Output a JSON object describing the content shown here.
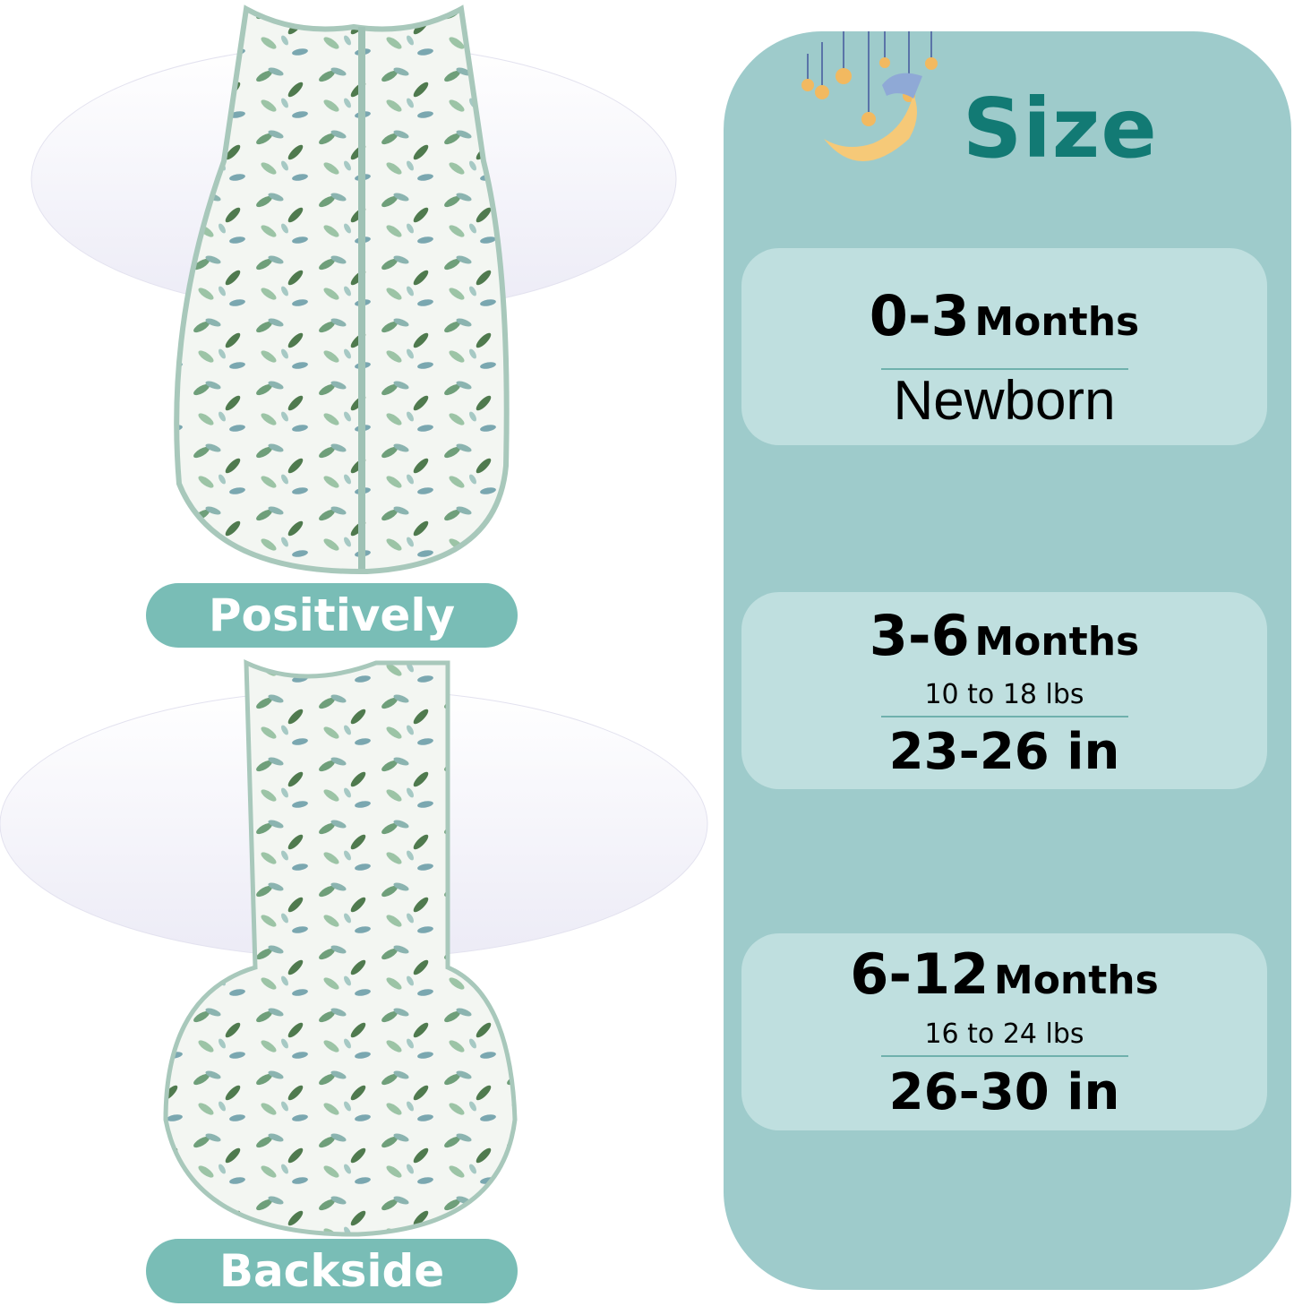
{
  "labels": {
    "front": "Positively",
    "back": "Backside"
  },
  "panel": {
    "title": "Size",
    "sizes": [
      {
        "range": "0-3",
        "unit": "Months",
        "detail": "Newborn"
      },
      {
        "range": "3-6",
        "unit": "Months",
        "weight": "10 to 18 lbs",
        "detail": "23-26 in"
      },
      {
        "range": "6-12",
        "unit": "Months",
        "weight": "16 to 24 lbs",
        "detail": "26-30 in"
      }
    ]
  },
  "colors": {
    "panel": "#9ecbcb",
    "card": "#bfdfdf",
    "title": "#127a74",
    "pill": "#79bdb6",
    "trim": "#a8c8bb"
  },
  "icons": [
    "moon-with-nightcap-icon",
    "hanging-stars-icon"
  ]
}
